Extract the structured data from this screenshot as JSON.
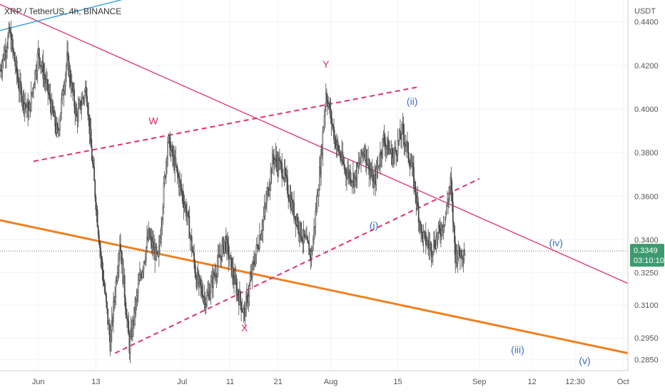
{
  "chart_data": {
    "type": "candlestick",
    "title": "XRP / TetherUS, 4h, BINANCE",
    "price_axis": {
      "unit": "USDT",
      "range": [
        0.28,
        0.45
      ],
      "tick_labels": [
        "0.4400",
        "0.4200",
        "0.4000",
        "0.3800",
        "0.3600",
        "0.3400",
        "0.3250",
        "0.3100",
        "0.2950",
        "0.2850"
      ],
      "tick_values": [
        0.44,
        0.42,
        0.4,
        0.38,
        0.36,
        0.34,
        0.325,
        0.31,
        0.295,
        0.285
      ]
    },
    "time_axis": {
      "range": [
        "2021-05-24",
        "2021-10-02"
      ],
      "tick_labels": [
        "Jun",
        "13",
        "Jul",
        "11",
        "21",
        "Aug",
        "15",
        "Sep",
        "12",
        "12:30",
        "Oct"
      ],
      "tick_dates": [
        "2021-06-01",
        "2021-06-13",
        "2021-07-01",
        "2021-07-11",
        "2021-07-21",
        "2021-08-01",
        "2021-08-15",
        "2021-09-01",
        "2021-09-12",
        "2021-09-21",
        "2021-10-01"
      ]
    },
    "last_price": {
      "value": "0.3349",
      "countdown": "03:10:10",
      "level": 0.3349
    },
    "colors": {
      "up_candle": "#4a4a4a",
      "down_candle": "#4a4a4a",
      "pink_line": "#e0306a",
      "orange_line": "#f08020",
      "blue_line": "#2a9ad8",
      "wave_label_blue": "#3a6fbf",
      "wave_label_pink": "#e0306a",
      "badge": "#3d9970"
    },
    "candle_path": [
      [
        "2021-05-24",
        0.418
      ],
      [
        "2021-05-26",
        0.435
      ],
      [
        "2021-05-28",
        0.41
      ],
      [
        "2021-05-30",
        0.398
      ],
      [
        "2021-06-01",
        0.426
      ],
      [
        "2021-06-03",
        0.408
      ],
      [
        "2021-06-05",
        0.388
      ],
      [
        "2021-06-07",
        0.423
      ],
      [
        "2021-06-09",
        0.396
      ],
      [
        "2021-06-11",
        0.41
      ],
      [
        "2021-06-12",
        0.382
      ],
      [
        "2021-06-14",
        0.333
      ],
      [
        "2021-06-16",
        0.293
      ],
      [
        "2021-06-18",
        0.34
      ],
      [
        "2021-06-20",
        0.291
      ],
      [
        "2021-06-22",
        0.32
      ],
      [
        "2021-06-24",
        0.342
      ],
      [
        "2021-06-26",
        0.33
      ],
      [
        "2021-06-28",
        0.386
      ],
      [
        "2021-06-30",
        0.37
      ],
      [
        "2021-07-02",
        0.352
      ],
      [
        "2021-07-04",
        0.322
      ],
      [
        "2021-07-06",
        0.312
      ],
      [
        "2021-07-08",
        0.326
      ],
      [
        "2021-07-10",
        0.34
      ],
      [
        "2021-07-12",
        0.32
      ],
      [
        "2021-07-14",
        0.306
      ],
      [
        "2021-07-16",
        0.33
      ],
      [
        "2021-07-18",
        0.35
      ],
      [
        "2021-07-20",
        0.378
      ],
      [
        "2021-07-22",
        0.372
      ],
      [
        "2021-07-24",
        0.355
      ],
      [
        "2021-07-26",
        0.342
      ],
      [
        "2021-07-28",
        0.333
      ],
      [
        "2021-07-30",
        0.378
      ],
      [
        "2021-07-31",
        0.408
      ],
      [
        "2021-08-02",
        0.385
      ],
      [
        "2021-08-04",
        0.372
      ],
      [
        "2021-08-06",
        0.368
      ],
      [
        "2021-08-08",
        0.382
      ],
      [
        "2021-08-10",
        0.365
      ],
      [
        "2021-08-12",
        0.386
      ],
      [
        "2021-08-14",
        0.378
      ],
      [
        "2021-08-16",
        0.39
      ],
      [
        "2021-08-18",
        0.372
      ],
      [
        "2021-08-20",
        0.342
      ],
      [
        "2021-08-22",
        0.336
      ],
      [
        "2021-08-24",
        0.345
      ],
      [
        "2021-08-25",
        0.352
      ],
      [
        "2021-08-26",
        0.366
      ],
      [
        "2021-08-27",
        0.333
      ],
      [
        "2021-08-29",
        0.335
      ]
    ],
    "trendlines": [
      {
        "style": "solid",
        "color": "pink_line",
        "from": [
          "2021-05-24",
          0.448
        ],
        "to": [
          "2021-10-02",
          0.32
        ]
      },
      {
        "style": "solid",
        "color": "orange_line",
        "from": [
          "2021-05-24",
          0.349
        ],
        "to": [
          "2021-10-02",
          0.288
        ]
      },
      {
        "style": "solid",
        "color": "blue_line",
        "from": [
          "2021-05-24",
          0.436
        ],
        "to": [
          "2021-06-20",
          0.451
        ]
      },
      {
        "style": "dashed",
        "color": "pink_line",
        "from": [
          "2021-05-31",
          0.376
        ],
        "to": [
          "2021-08-19",
          0.41
        ]
      },
      {
        "style": "dashed",
        "color": "pink_line",
        "from": [
          "2021-06-17",
          0.288
        ],
        "to": [
          "2021-09-01",
          0.368
        ]
      }
    ],
    "annotations": [
      {
        "text": "W",
        "at": [
          "2021-06-25",
          0.393
        ],
        "color": "wave_label_pink"
      },
      {
        "text": "X",
        "at": [
          "2021-07-14",
          0.298
        ],
        "color": "wave_label_pink"
      },
      {
        "text": "Y",
        "at": [
          "2021-07-31",
          0.419
        ],
        "color": "wave_label_pink"
      },
      {
        "text": "(ii)",
        "at": [
          "2021-08-18",
          0.402
        ],
        "color": "wave_label_blue"
      },
      {
        "text": "(i)",
        "at": [
          "2021-08-10",
          0.345
        ],
        "color": "wave_label_blue"
      },
      {
        "text": "(iv)",
        "at": [
          "2021-09-17",
          0.337
        ],
        "color": "wave_label_blue"
      },
      {
        "text": "(iii)",
        "at": [
          "2021-09-09",
          0.288
        ],
        "color": "wave_label_blue"
      },
      {
        "text": "(v)",
        "at": [
          "2021-09-23",
          0.283
        ],
        "color": "wave_label_blue"
      }
    ]
  }
}
